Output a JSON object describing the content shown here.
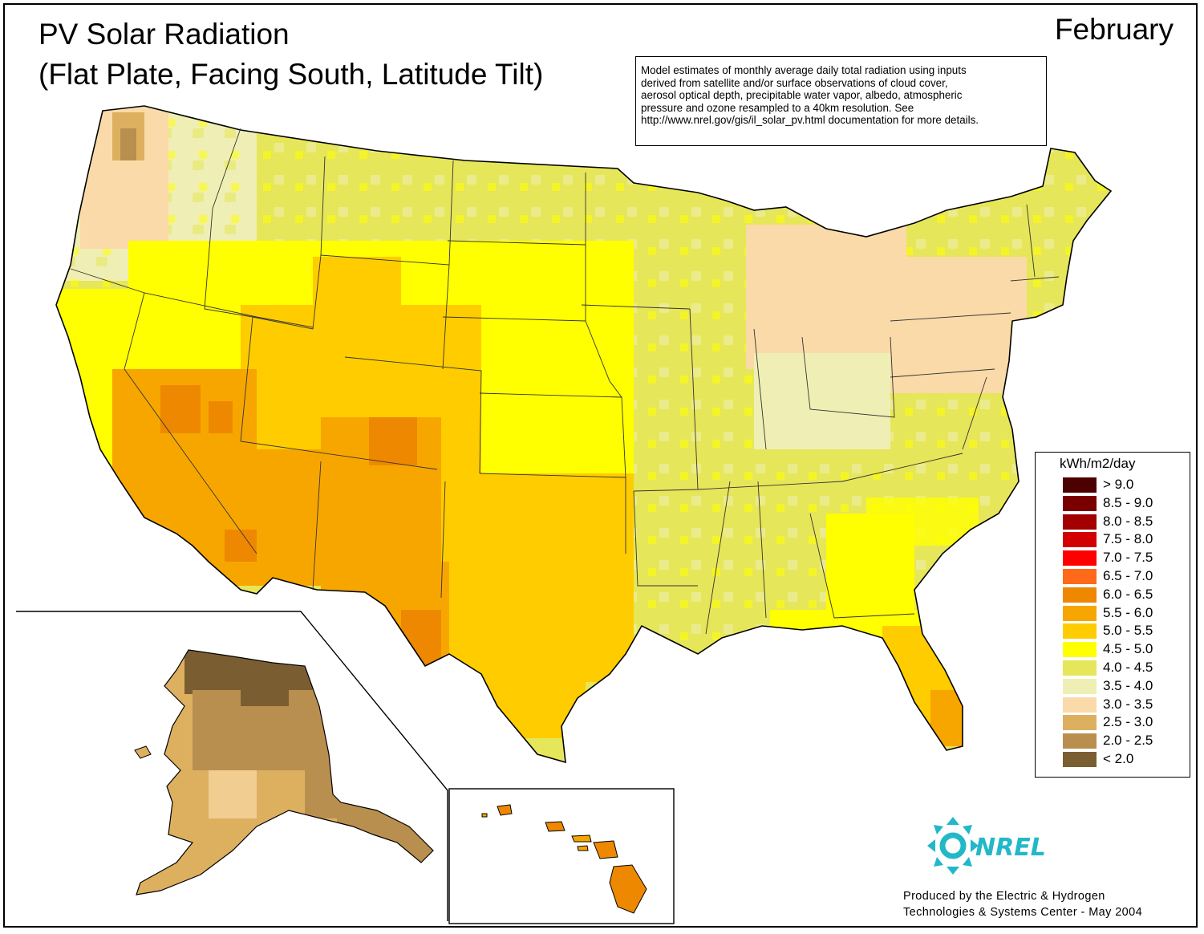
{
  "title": {
    "line1": "PV Solar Radiation",
    "line2": "(Flat Plate, Facing South, Latitude Tilt)"
  },
  "month": "February",
  "note": {
    "lines": [
      "Model estimates of monthly average daily total radiation using inputs",
      "derived from satellite and/or surface observations of cloud cover,",
      "aerosol optical depth, precipitable water vapor, albedo, atmospheric",
      "pressure and ozone resampled to a 40km resolution.  See",
      "http://www.nrel.gov/gis/il_solar_pv.html documentation for more details."
    ]
  },
  "legend": {
    "title": "kWh/m2/day",
    "items": [
      {
        "label": "> 9.0",
        "color": "#4d0000"
      },
      {
        "label": "8.5 - 9.0",
        "color": "#7a0000"
      },
      {
        "label": "8.0 - 8.5",
        "color": "#a30000"
      },
      {
        "label": "7.5 - 8.0",
        "color": "#d20000"
      },
      {
        "label": "7.0 - 7.5",
        "color": "#ff0000"
      },
      {
        "label": "6.5 - 7.0",
        "color": "#ff6a1a"
      },
      {
        "label": "6.0 - 6.5",
        "color": "#ee8800"
      },
      {
        "label": "5.5 - 6.0",
        "color": "#f7a600"
      },
      {
        "label": "5.0 - 5.5",
        "color": "#ffcc00"
      },
      {
        "label": "4.5 - 5.0",
        "color": "#ffff00"
      },
      {
        "label": "4.0 - 4.5",
        "color": "#e6e65a"
      },
      {
        "label": "3.5 - 4.0",
        "color": "#efefb5"
      },
      {
        "label": "3.0 - 3.5",
        "color": "#fadaa8"
      },
      {
        "label": "2.5 - 3.0",
        "color": "#ddb060"
      },
      {
        "label": "2.0 - 2.5",
        "color": "#b98f4f"
      },
      {
        "label": "< 2.0",
        "color": "#7a5e32"
      }
    ]
  },
  "logo": {
    "text": "NREL",
    "color": "#22b8c8"
  },
  "credit": {
    "line1": "Produced by the Electric & Hydrogen",
    "line2": "Technologies & Systems Center - May 2004"
  }
}
